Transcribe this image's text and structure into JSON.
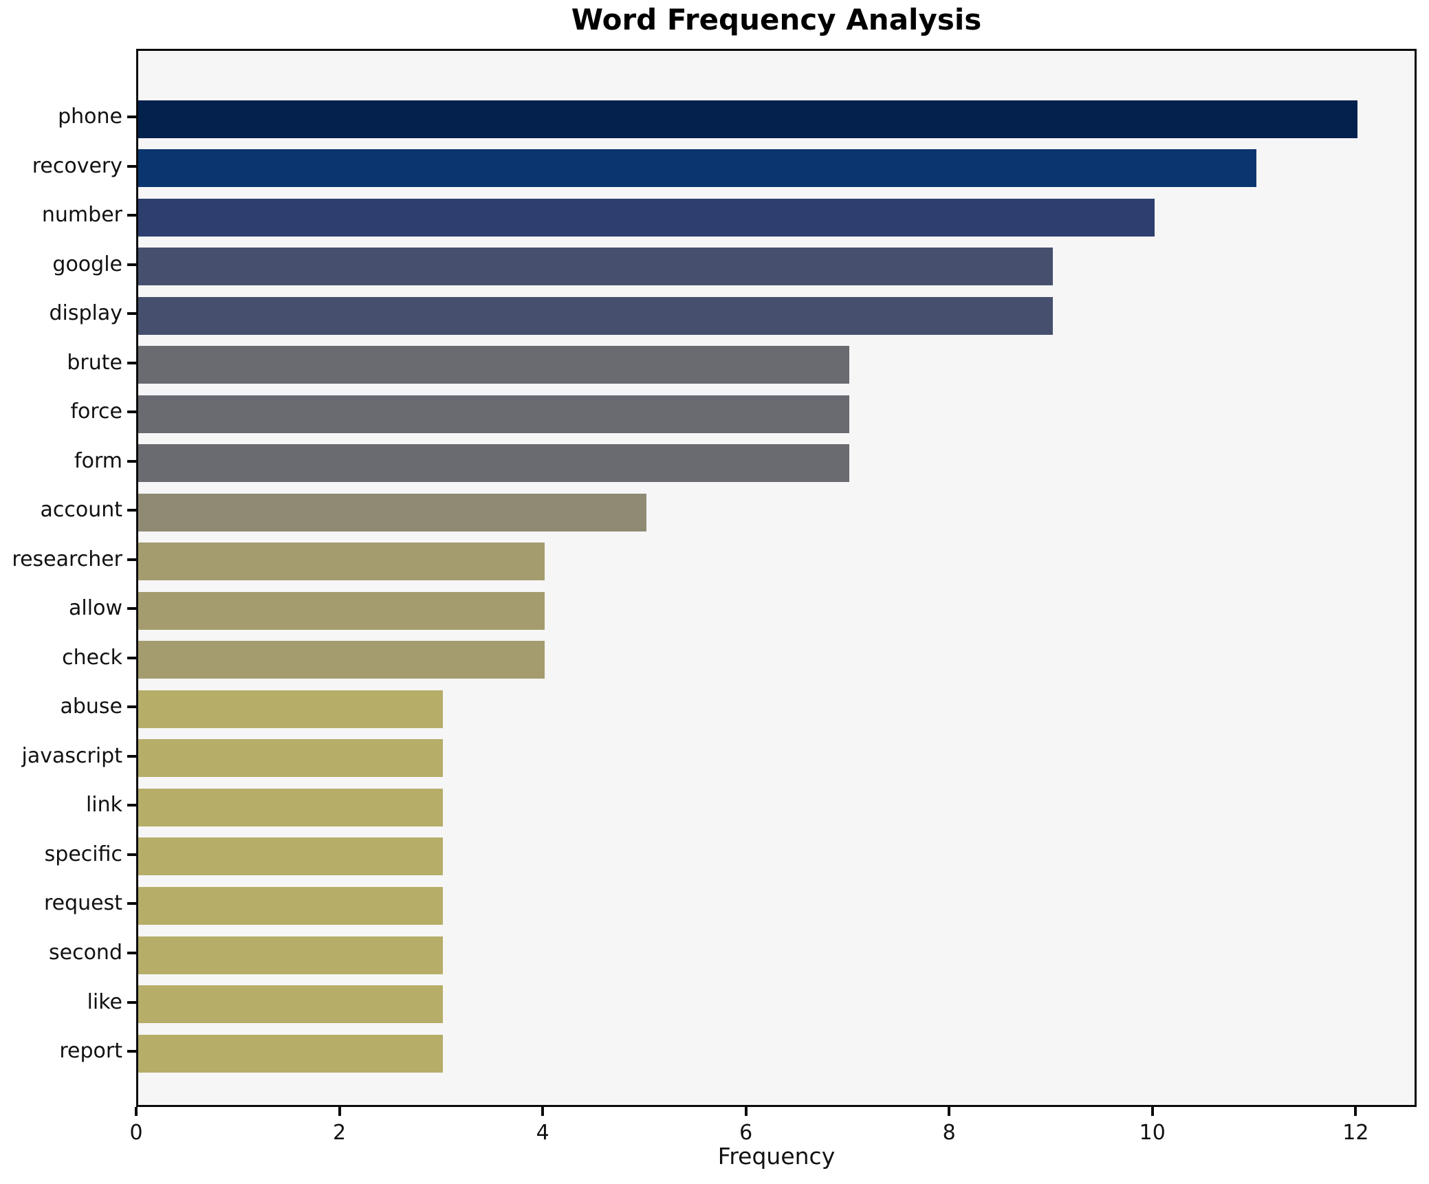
{
  "chart_data": {
    "type": "bar",
    "orientation": "horizontal",
    "title": "Word Frequency Analysis",
    "xlabel": "Frequency",
    "ylabel": "",
    "categories": [
      "phone",
      "recovery",
      "number",
      "google",
      "display",
      "brute",
      "force",
      "form",
      "account",
      "researcher",
      "allow",
      "check",
      "abuse",
      "javascript",
      "link",
      "specific",
      "request",
      "second",
      "like",
      "report"
    ],
    "values": [
      12,
      11,
      10,
      9,
      9,
      7,
      7,
      7,
      5,
      4,
      4,
      4,
      3,
      3,
      3,
      3,
      3,
      3,
      3,
      3
    ],
    "bar_colors": [
      "#04214d",
      "#0b356f",
      "#2e3f6f",
      "#46506e",
      "#46506e",
      "#6a6b71",
      "#6a6b71",
      "#6a6b71",
      "#8f8a74",
      "#a49c6e",
      "#a49c6e",
      "#a49c6e",
      "#b6ad68",
      "#b6ad68",
      "#b6ad68",
      "#b6ad68",
      "#b6ad68",
      "#b6ad68",
      "#b6ad68",
      "#b6ad68"
    ],
    "xlim": [
      0,
      12.6
    ],
    "xticks": [
      0,
      2,
      4,
      6,
      8,
      10,
      12
    ],
    "grid": false,
    "legend": null,
    "plot_background": "#f6f6f7",
    "figure_background": "#ffffff",
    "spine_color": "#0a0a0a"
  }
}
